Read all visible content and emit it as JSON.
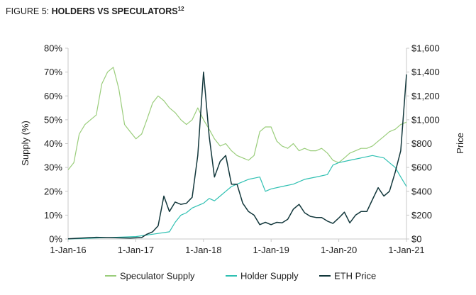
{
  "figure": {
    "prefix": "FIGURE 5: ",
    "title": "HOLDERS VS SPECULATORS",
    "footnote": "12"
  },
  "chart_data": {
    "type": "line",
    "ylabel": "Supply (%)",
    "y2label": "Price",
    "ylim": [
      0,
      80
    ],
    "y2lim": [
      0,
      1600
    ],
    "yticks": [
      "0%",
      "10%",
      "20%",
      "30%",
      "40%",
      "50%",
      "60%",
      "70%",
      "80%"
    ],
    "y2ticks": [
      "$0",
      "$200",
      "$400",
      "$600",
      "$800",
      "$1,000",
      "$1,200",
      "$1,400",
      "$1,600"
    ],
    "xlim": [
      "2016-01-01",
      "2021-01-01"
    ],
    "xticks": [
      "1-Jan-16",
      "1-Jan-17",
      "1-Jan-18",
      "1-Jan-19",
      "1-Jan-20",
      "1-Jan-21"
    ],
    "legend_position": "bottom",
    "grid": false,
    "series": [
      {
        "name": "Speculator Supply",
        "axis": "left",
        "color": "#9acd7b",
        "points": [
          [
            "2016-01-01",
            29
          ],
          [
            "2016-02-01",
            32
          ],
          [
            "2016-03-01",
            44
          ],
          [
            "2016-04-01",
            48
          ],
          [
            "2016-05-01",
            50
          ],
          [
            "2016-06-01",
            52
          ],
          [
            "2016-07-01",
            65
          ],
          [
            "2016-08-01",
            70
          ],
          [
            "2016-09-01",
            72
          ],
          [
            "2016-10-01",
            63
          ],
          [
            "2016-11-01",
            48
          ],
          [
            "2016-12-01",
            45
          ],
          [
            "2017-01-01",
            42
          ],
          [
            "2017-02-01",
            44
          ],
          [
            "2017-03-01",
            50
          ],
          [
            "2017-04-01",
            57
          ],
          [
            "2017-05-01",
            60
          ],
          [
            "2017-06-01",
            58
          ],
          [
            "2017-07-01",
            55
          ],
          [
            "2017-08-01",
            53
          ],
          [
            "2017-09-01",
            50
          ],
          [
            "2017-10-01",
            48
          ],
          [
            "2017-11-01",
            50
          ],
          [
            "2017-12-01",
            55
          ],
          [
            "2018-01-01",
            50
          ],
          [
            "2018-02-01",
            46
          ],
          [
            "2018-03-01",
            42
          ],
          [
            "2018-04-01",
            39
          ],
          [
            "2018-05-01",
            40
          ],
          [
            "2018-06-01",
            37
          ],
          [
            "2018-07-01",
            35
          ],
          [
            "2018-08-01",
            34
          ],
          [
            "2018-09-01",
            33
          ],
          [
            "2018-10-01",
            35
          ],
          [
            "2018-11-01",
            45
          ],
          [
            "2018-12-01",
            47
          ],
          [
            "2019-01-01",
            47
          ],
          [
            "2019-02-01",
            41
          ],
          [
            "2019-03-01",
            39
          ],
          [
            "2019-04-01",
            38
          ],
          [
            "2019-05-01",
            40
          ],
          [
            "2019-06-01",
            37
          ],
          [
            "2019-07-01",
            38
          ],
          [
            "2019-08-01",
            37
          ],
          [
            "2019-09-01",
            37
          ],
          [
            "2019-10-01",
            38
          ],
          [
            "2019-11-01",
            36
          ],
          [
            "2019-12-01",
            33
          ],
          [
            "2020-01-01",
            32
          ],
          [
            "2020-02-01",
            34
          ],
          [
            "2020-03-01",
            36
          ],
          [
            "2020-04-01",
            37
          ],
          [
            "2020-05-01",
            38
          ],
          [
            "2020-06-01",
            38
          ],
          [
            "2020-07-01",
            39
          ],
          [
            "2020-08-01",
            41
          ],
          [
            "2020-09-01",
            43
          ],
          [
            "2020-10-01",
            45
          ],
          [
            "2020-11-01",
            46
          ],
          [
            "2020-12-01",
            48
          ],
          [
            "2021-01-01",
            49
          ]
        ]
      },
      {
        "name": "Holder Supply",
        "axis": "left",
        "color": "#2fc0b2",
        "points": [
          [
            "2016-01-01",
            0
          ],
          [
            "2016-07-01",
            0.5
          ],
          [
            "2017-01-01",
            1
          ],
          [
            "2017-04-01",
            2
          ],
          [
            "2017-07-01",
            3
          ],
          [
            "2017-08-01",
            7
          ],
          [
            "2017-09-01",
            10
          ],
          [
            "2017-10-01",
            11
          ],
          [
            "2017-11-01",
            13
          ],
          [
            "2017-12-01",
            14
          ],
          [
            "2018-01-01",
            15
          ],
          [
            "2018-02-01",
            17
          ],
          [
            "2018-03-01",
            16
          ],
          [
            "2018-04-01",
            18
          ],
          [
            "2018-05-01",
            20
          ],
          [
            "2018-06-01",
            22
          ],
          [
            "2018-07-01",
            23
          ],
          [
            "2018-08-01",
            24
          ],
          [
            "2018-09-01",
            25
          ],
          [
            "2018-10-01",
            25.5
          ],
          [
            "2018-11-01",
            26
          ],
          [
            "2018-12-01",
            20
          ],
          [
            "2019-01-01",
            21
          ],
          [
            "2019-03-01",
            22
          ],
          [
            "2019-05-01",
            23
          ],
          [
            "2019-07-01",
            25
          ],
          [
            "2019-09-01",
            26
          ],
          [
            "2019-11-01",
            27
          ],
          [
            "2019-12-01",
            31
          ],
          [
            "2020-01-01",
            32
          ],
          [
            "2020-03-01",
            33
          ],
          [
            "2020-05-01",
            34
          ],
          [
            "2020-07-01",
            35
          ],
          [
            "2020-09-01",
            34
          ],
          [
            "2020-10-01",
            32
          ],
          [
            "2020-11-01",
            30
          ],
          [
            "2020-12-01",
            26
          ],
          [
            "2021-01-01",
            22
          ]
        ]
      },
      {
        "name": "ETH Price",
        "axis": "right",
        "color": "#12373b",
        "points": [
          [
            "2016-01-01",
            1
          ],
          [
            "2016-06-01",
            14
          ],
          [
            "2016-12-01",
            8
          ],
          [
            "2017-02-01",
            12
          ],
          [
            "2017-03-01",
            40
          ],
          [
            "2017-04-01",
            60
          ],
          [
            "2017-05-01",
            110
          ],
          [
            "2017-06-01",
            360
          ],
          [
            "2017-07-01",
            230
          ],
          [
            "2017-08-01",
            310
          ],
          [
            "2017-09-01",
            290
          ],
          [
            "2017-10-01",
            300
          ],
          [
            "2017-11-01",
            350
          ],
          [
            "2017-12-01",
            700
          ],
          [
            "2018-01-01",
            1400
          ],
          [
            "2018-02-01",
            860
          ],
          [
            "2018-03-01",
            520
          ],
          [
            "2018-04-01",
            650
          ],
          [
            "2018-05-01",
            700
          ],
          [
            "2018-06-01",
            460
          ],
          [
            "2018-07-01",
            460
          ],
          [
            "2018-08-01",
            300
          ],
          [
            "2018-09-01",
            230
          ],
          [
            "2018-10-01",
            200
          ],
          [
            "2018-11-01",
            120
          ],
          [
            "2018-12-01",
            140
          ],
          [
            "2019-01-01",
            120
          ],
          [
            "2019-02-01",
            140
          ],
          [
            "2019-03-01",
            135
          ],
          [
            "2019-04-01",
            165
          ],
          [
            "2019-05-01",
            250
          ],
          [
            "2019-06-01",
            290
          ],
          [
            "2019-07-01",
            220
          ],
          [
            "2019-08-01",
            190
          ],
          [
            "2019-09-01",
            180
          ],
          [
            "2019-10-01",
            180
          ],
          [
            "2019-11-01",
            150
          ],
          [
            "2019-12-01",
            130
          ],
          [
            "2020-01-01",
            175
          ],
          [
            "2020-02-01",
            225
          ],
          [
            "2020-03-01",
            135
          ],
          [
            "2020-04-01",
            200
          ],
          [
            "2020-05-01",
            230
          ],
          [
            "2020-06-01",
            230
          ],
          [
            "2020-07-01",
            330
          ],
          [
            "2020-08-01",
            430
          ],
          [
            "2020-09-01",
            360
          ],
          [
            "2020-10-01",
            400
          ],
          [
            "2020-11-01",
            560
          ],
          [
            "2020-12-01",
            740
          ],
          [
            "2021-01-01",
            1380
          ]
        ]
      }
    ]
  }
}
